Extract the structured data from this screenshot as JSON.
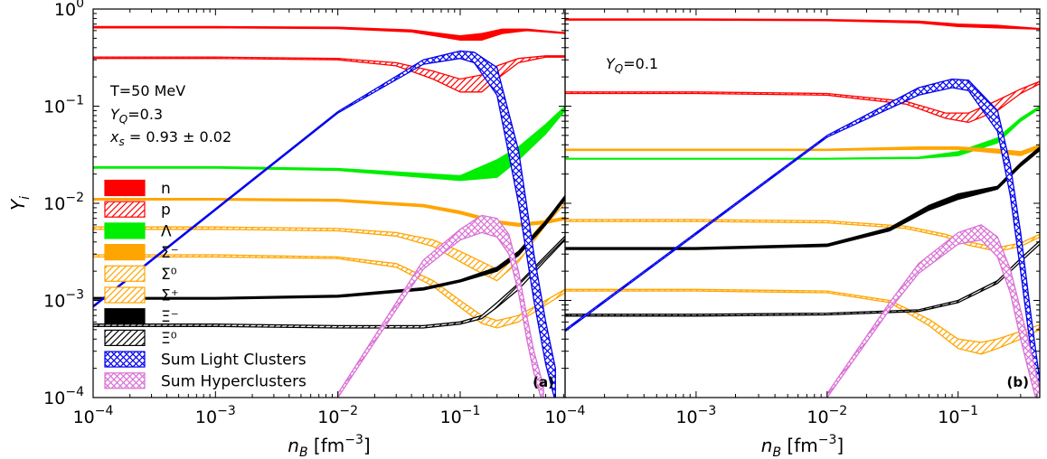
{
  "chart_data": [
    {
      "type": "line",
      "panel_label": "(a)",
      "ylabel": "Y",
      "ylabel_sub": "i",
      "xlabel": "n",
      "xlabel_sub": "B",
      "xlabel_unit": " [fm",
      "xlabel_unit_sup": "−3",
      "xlabel_unit_end": "]",
      "xscale": "log",
      "yscale": "log",
      "xlim": [
        0.0001,
        0.72
      ],
      "ylim": [
        0.0001,
        1.0
      ],
      "x_ticks": [
        {
          "base": "10",
          "exp": "−4"
        },
        {
          "base": "10",
          "exp": "−3"
        },
        {
          "base": "10",
          "exp": "−2"
        },
        {
          "base": "10",
          "exp": "−1"
        }
      ],
      "y_ticks": [
        {
          "base": "10",
          "exp": "−4"
        },
        {
          "base": "10",
          "exp": "−3"
        },
        {
          "base": "10",
          "exp": "−2"
        },
        {
          "base": "10",
          "exp": "−1"
        },
        {
          "base": "10",
          "exp": "0"
        }
      ],
      "annotations": [
        {
          "text": "T=50 MeV"
        },
        {
          "text": "Y",
          "sub": "Q",
          "rest": "=0.3"
        },
        {
          "text": "x",
          "sub": "s",
          "rest": " = 0.93 ± 0.02"
        }
      ],
      "series": [
        {
          "name": "n",
          "color": "#ff0000",
          "style": "solid",
          "x": [
            0.0001,
            0.001,
            0.01,
            0.04,
            0.1,
            0.15,
            0.22,
            0.35,
            0.72
          ],
          "lower": [
            0.64,
            0.64,
            0.63,
            0.58,
            0.48,
            0.48,
            0.56,
            0.6,
            0.56
          ],
          "upper": [
            0.66,
            0.66,
            0.65,
            0.61,
            0.53,
            0.56,
            0.62,
            0.62,
            0.57
          ]
        },
        {
          "name": "p",
          "color": "#ff0000",
          "style": "hatch",
          "x": [
            0.0001,
            0.001,
            0.01,
            0.03,
            0.06,
            0.1,
            0.15,
            0.2,
            0.3,
            0.5,
            0.72
          ],
          "lower": [
            0.31,
            0.31,
            0.3,
            0.26,
            0.19,
            0.14,
            0.14,
            0.19,
            0.28,
            0.32,
            0.32
          ],
          "upper": [
            0.32,
            0.32,
            0.31,
            0.28,
            0.23,
            0.19,
            0.21,
            0.26,
            0.31,
            0.33,
            0.33
          ]
        },
        {
          "name": "Λ",
          "color": "#00ee00",
          "style": "solid",
          "x": [
            0.0001,
            0.001,
            0.01,
            0.05,
            0.1,
            0.2,
            0.3,
            0.5,
            0.72
          ],
          "lower": [
            0.023,
            0.023,
            0.0218,
            0.0185,
            0.0172,
            0.0185,
            0.028,
            0.052,
            0.09
          ],
          "upper": [
            0.0238,
            0.0238,
            0.0228,
            0.0202,
            0.0192,
            0.028,
            0.038,
            0.065,
            0.1
          ]
        },
        {
          "name": "Σ⁻",
          "color": "#ffa500",
          "style": "solid",
          "x": [
            0.0001,
            0.001,
            0.01,
            0.05,
            0.1,
            0.2,
            0.3,
            0.5,
            0.72
          ],
          "lower": [
            0.0108,
            0.0108,
            0.0105,
            0.0092,
            0.0078,
            0.0062,
            0.0058,
            0.0062,
            0.0068
          ],
          "upper": [
            0.0112,
            0.0112,
            0.011,
            0.0097,
            0.0083,
            0.0066,
            0.0062,
            0.0066,
            0.0072
          ]
        },
        {
          "name": "Σ⁰",
          "color": "#ffa500",
          "style": "hatch",
          "x": [
            0.0001,
            0.001,
            0.01,
            0.03,
            0.06,
            0.1,
            0.15,
            0.2,
            0.3,
            0.5,
            0.72
          ],
          "lower": [
            0.0054,
            0.0054,
            0.0052,
            0.0046,
            0.0036,
            0.0025,
            0.0019,
            0.0016,
            0.0025,
            0.006,
            0.01
          ],
          "upper": [
            0.0057,
            0.0057,
            0.0055,
            0.005,
            0.0042,
            0.0032,
            0.0025,
            0.0021,
            0.0032,
            0.0068,
            0.011
          ]
        },
        {
          "name": "Σ⁺",
          "color": "#ffa500",
          "style": "hatch",
          "x": [
            0.0001,
            0.001,
            0.01,
            0.03,
            0.06,
            0.1,
            0.15,
            0.2,
            0.3,
            0.5,
            0.72
          ],
          "lower": [
            0.0028,
            0.0028,
            0.0027,
            0.0022,
            0.0014,
            0.00085,
            0.00058,
            0.00052,
            0.0006,
            0.0009,
            0.0012
          ],
          "upper": [
            0.00295,
            0.00295,
            0.0028,
            0.0024,
            0.0016,
            0.001,
            0.0007,
            0.00062,
            0.0007,
            0.001,
            0.0013
          ]
        },
        {
          "name": "Ξ⁻",
          "color": "#000000",
          "style": "solid",
          "x": [
            0.0001,
            0.001,
            0.01,
            0.05,
            0.1,
            0.2,
            0.3,
            0.5,
            0.72
          ],
          "lower": [
            0.00103,
            0.00103,
            0.00108,
            0.00128,
            0.00155,
            0.002,
            0.0029,
            0.006,
            0.011
          ],
          "upper": [
            0.00107,
            0.00107,
            0.00113,
            0.00135,
            0.00163,
            0.0022,
            0.0032,
            0.0066,
            0.012
          ]
        },
        {
          "name": "Ξ⁰",
          "color": "#000000",
          "style": "hatch",
          "x": [
            0.0001,
            0.001,
            0.01,
            0.05,
            0.1,
            0.15,
            0.2,
            0.3,
            0.5,
            0.72
          ],
          "lower": [
            0.00054,
            0.00054,
            0.00052,
            0.00052,
            0.00057,
            0.00065,
            0.00085,
            0.0013,
            0.0026,
            0.0042
          ],
          "upper": [
            0.00057,
            0.00057,
            0.00055,
            0.00055,
            0.0006,
            0.0007,
            0.00095,
            0.0015,
            0.0029,
            0.0046
          ]
        },
        {
          "name": "Sum Light Clusters",
          "color": "#0000ee",
          "style": "cross",
          "x": [
            0.0001,
            0.001,
            0.01,
            0.05,
            0.1,
            0.13,
            0.2,
            0.3,
            0.4,
            0.5,
            0.6
          ],
          "lower": [
            0.00085,
            0.0085,
            0.085,
            0.27,
            0.31,
            0.28,
            0.13,
            0.01,
            0.001,
            0.00022,
            9e-05
          ],
          "upper": [
            0.00088,
            0.0088,
            0.088,
            0.3,
            0.37,
            0.36,
            0.25,
            0.035,
            0.003,
            0.0006,
            0.0002
          ]
        },
        {
          "name": "Sum Hyperclusters",
          "color": "#da70d6",
          "style": "cross",
          "x": [
            0.01,
            0.03,
            0.05,
            0.1,
            0.15,
            0.2,
            0.25,
            0.3,
            0.35,
            0.4,
            0.48
          ],
          "lower": [
            0.0001,
            0.0008,
            0.0021,
            0.0042,
            0.005,
            0.0045,
            0.003,
            0.0012,
            0.0004,
            0.00018,
            8e-05
          ],
          "upper": [
            0.00011,
            0.00095,
            0.0026,
            0.0054,
            0.0075,
            0.007,
            0.0048,
            0.002,
            0.0007,
            0.0003,
            0.00013
          ]
        }
      ]
    },
    {
      "type": "line",
      "panel_label": "(b)",
      "xlabel": "n",
      "xlabel_sub": "B",
      "xlabel_unit": " [fm",
      "xlabel_unit_sup": "−3",
      "xlabel_unit_end": "]",
      "xscale": "log",
      "yscale": "log",
      "xlim": [
        0.0001,
        0.42
      ],
      "ylim": [
        0.0001,
        1.0
      ],
      "x_ticks": [
        {
          "base": "10",
          "exp": "−4"
        },
        {
          "base": "10",
          "exp": "−3"
        },
        {
          "base": "10",
          "exp": "−2"
        },
        {
          "base": "10",
          "exp": "−1"
        }
      ],
      "annotations": [
        {
          "text": "Y",
          "sub": "Q",
          "rest": "=0.1"
        }
      ],
      "series": [
        {
          "name": "n",
          "color": "#ff0000",
          "style": "solid",
          "x": [
            0.0001,
            0.001,
            0.01,
            0.05,
            0.1,
            0.2,
            0.42
          ],
          "lower": [
            0.77,
            0.77,
            0.76,
            0.72,
            0.66,
            0.64,
            0.62
          ],
          "upper": [
            0.79,
            0.79,
            0.78,
            0.75,
            0.7,
            0.68,
            0.63
          ]
        },
        {
          "name": "p",
          "color": "#ff0000",
          "style": "hatch",
          "x": [
            0.0001,
            0.001,
            0.01,
            0.04,
            0.08,
            0.12,
            0.2,
            0.3,
            0.42
          ],
          "lower": [
            0.135,
            0.135,
            0.13,
            0.105,
            0.075,
            0.068,
            0.09,
            0.135,
            0.17
          ],
          "upper": [
            0.14,
            0.14,
            0.135,
            0.112,
            0.085,
            0.085,
            0.115,
            0.15,
            0.18
          ]
        },
        {
          "name": "Λ",
          "color": "#00ee00",
          "style": "solid",
          "x": [
            0.0001,
            0.001,
            0.01,
            0.05,
            0.1,
            0.2,
            0.3,
            0.42
          ],
          "lower": [
            0.0285,
            0.0285,
            0.0285,
            0.029,
            0.031,
            0.042,
            0.07,
            0.095
          ],
          "upper": [
            0.029,
            0.029,
            0.029,
            0.0298,
            0.034,
            0.047,
            0.075,
            0.1
          ]
        },
        {
          "name": "Σ⁻",
          "color": "#ffa500",
          "style": "solid",
          "x": [
            0.0001,
            0.001,
            0.01,
            0.05,
            0.1,
            0.2,
            0.3,
            0.42
          ],
          "lower": [
            0.035,
            0.035,
            0.035,
            0.036,
            0.036,
            0.033,
            0.031,
            0.037
          ],
          "upper": [
            0.036,
            0.036,
            0.036,
            0.038,
            0.038,
            0.036,
            0.034,
            0.04
          ]
        },
        {
          "name": "Σ⁰",
          "color": "#ffa500",
          "style": "hatch",
          "x": [
            0.0001,
            0.001,
            0.01,
            0.04,
            0.08,
            0.12,
            0.2,
            0.3,
            0.42
          ],
          "lower": [
            0.0065,
            0.0065,
            0.0063,
            0.0055,
            0.0045,
            0.0037,
            0.0032,
            0.0036,
            0.0045
          ],
          "upper": [
            0.0068,
            0.0068,
            0.0066,
            0.0058,
            0.0048,
            0.004,
            0.0035,
            0.0039,
            0.0048
          ]
        },
        {
          "name": "Σ⁺",
          "color": "#ffa500",
          "style": "hatch",
          "x": [
            0.0001,
            0.001,
            0.01,
            0.03,
            0.06,
            0.1,
            0.15,
            0.2,
            0.3,
            0.42
          ],
          "lower": [
            0.00125,
            0.00125,
            0.0012,
            0.00095,
            0.00055,
            0.00032,
            0.00028,
            0.00032,
            0.0004,
            0.0005
          ],
          "upper": [
            0.0013,
            0.0013,
            0.00125,
            0.001,
            0.00064,
            0.0004,
            0.00037,
            0.0004,
            0.00048,
            0.00056
          ]
        },
        {
          "name": "Ξ⁻",
          "color": "#000000",
          "style": "solid",
          "x": [
            0.0001,
            0.001,
            0.01,
            0.03,
            0.06,
            0.1,
            0.2,
            0.3,
            0.42
          ],
          "lower": [
            0.00335,
            0.00335,
            0.0036,
            0.0052,
            0.0085,
            0.011,
            0.014,
            0.024,
            0.035
          ],
          "upper": [
            0.0035,
            0.0035,
            0.0038,
            0.0056,
            0.0095,
            0.0125,
            0.015,
            0.026,
            0.038
          ]
        },
        {
          "name": "Ξ⁰",
          "color": "#000000",
          "style": "hatch",
          "x": [
            0.0001,
            0.001,
            0.01,
            0.05,
            0.1,
            0.2,
            0.3,
            0.42
          ],
          "lower": [
            0.00069,
            0.00069,
            0.00071,
            0.00077,
            0.00095,
            0.0015,
            0.0025,
            0.0038
          ],
          "upper": [
            0.00072,
            0.00072,
            0.00074,
            0.0008,
            0.001,
            0.0016,
            0.0027,
            0.0041
          ]
        },
        {
          "name": "Sum Light Clusters",
          "color": "#0000ee",
          "style": "cross",
          "x": [
            0.0001,
            0.001,
            0.01,
            0.05,
            0.09,
            0.12,
            0.2,
            0.25,
            0.3,
            0.36,
            0.42
          ],
          "lower": [
            0.00048,
            0.0048,
            0.048,
            0.13,
            0.155,
            0.145,
            0.055,
            0.012,
            0.002,
            0.0003,
            8e-05
          ],
          "upper": [
            0.0005,
            0.005,
            0.05,
            0.155,
            0.19,
            0.185,
            0.09,
            0.025,
            0.005,
            0.0007,
            0.00015
          ]
        },
        {
          "name": "Sum Hyperclusters",
          "color": "#da70d6",
          "style": "cross",
          "x": [
            0.01,
            0.03,
            0.05,
            0.1,
            0.15,
            0.2,
            0.25,
            0.3,
            0.36,
            0.42
          ],
          "lower": [
            0.0001,
            0.0008,
            0.0019,
            0.0038,
            0.0042,
            0.0028,
            0.0012,
            0.0004,
            0.00015,
            7e-05
          ],
          "upper": [
            0.00011,
            0.00095,
            0.0024,
            0.005,
            0.006,
            0.0045,
            0.0021,
            0.0008,
            0.0003,
            0.00012
          ]
        }
      ]
    }
  ],
  "legend": [
    {
      "label": "n",
      "color": "#ff0000",
      "style": "solid"
    },
    {
      "label": "p",
      "color": "#ff0000",
      "style": "hatch"
    },
    {
      "label": "Λ",
      "color": "#00ee00",
      "style": "solid"
    },
    {
      "label": "Σ⁻",
      "color": "#ffa500",
      "style": "solid"
    },
    {
      "label": "Σ⁰",
      "color": "#ffa500",
      "style": "hatch"
    },
    {
      "label": "Σ⁺",
      "color": "#ffa500",
      "style": "hatch"
    },
    {
      "label": "Ξ⁻",
      "color": "#000000",
      "style": "solid"
    },
    {
      "label": "Ξ⁰",
      "color": "#000000",
      "style": "hatch"
    },
    {
      "label": "Sum Light Clusters",
      "color": "#0000ee",
      "style": "cross"
    },
    {
      "label": "Sum Hyperclusters",
      "color": "#da70d6",
      "style": "cross"
    }
  ]
}
